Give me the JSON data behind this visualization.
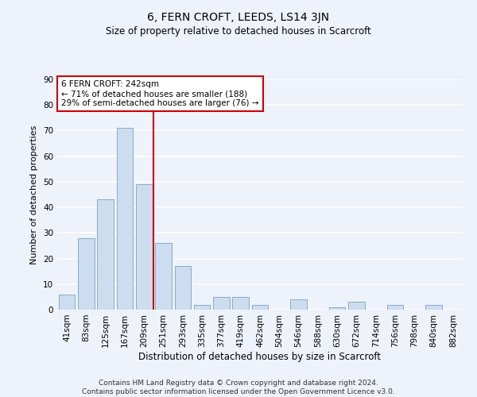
{
  "title": "6, FERN CROFT, LEEDS, LS14 3JN",
  "subtitle": "Size of property relative to detached houses in Scarcroft",
  "xlabel": "Distribution of detached houses by size in Scarcroft",
  "ylabel": "Number of detached properties",
  "footer_line1": "Contains HM Land Registry data © Crown copyright and database right 2024.",
  "footer_line2": "Contains public sector information licensed under the Open Government Licence v3.0.",
  "categories": [
    "41sqm",
    "83sqm",
    "125sqm",
    "167sqm",
    "209sqm",
    "251sqm",
    "293sqm",
    "335sqm",
    "377sqm",
    "419sqm",
    "462sqm",
    "504sqm",
    "546sqm",
    "588sqm",
    "630sqm",
    "672sqm",
    "714sqm",
    "756sqm",
    "798sqm",
    "840sqm",
    "882sqm"
  ],
  "values": [
    6,
    28,
    43,
    71,
    49,
    26,
    17,
    2,
    5,
    5,
    2,
    0,
    4,
    0,
    1,
    3,
    0,
    2,
    0,
    2,
    0
  ],
  "bar_color": "#ccddf0",
  "bar_edge_color": "#88aacc",
  "background_color": "#eef2fa",
  "plot_bg_color": "#eef2fa",
  "grid_color": "#ffffff",
  "vline_color": "#cc0000",
  "vline_x_index": 4.5,
  "annotation_text": "6 FERN CROFT: 242sqm\n← 71% of detached houses are smaller (188)\n29% of semi-detached houses are larger (76) →",
  "annotation_box_facecolor": "#ffffff",
  "annotation_box_edgecolor": "#cc0000",
  "ylim": [
    0,
    90
  ],
  "yticks": [
    0,
    10,
    20,
    30,
    40,
    50,
    60,
    70,
    80,
    90
  ],
  "title_fontsize": 10,
  "subtitle_fontsize": 8.5,
  "xlabel_fontsize": 8.5,
  "ylabel_fontsize": 8,
  "tick_fontsize": 7.5,
  "footer_fontsize": 6.5,
  "annotation_fontsize": 7.5
}
